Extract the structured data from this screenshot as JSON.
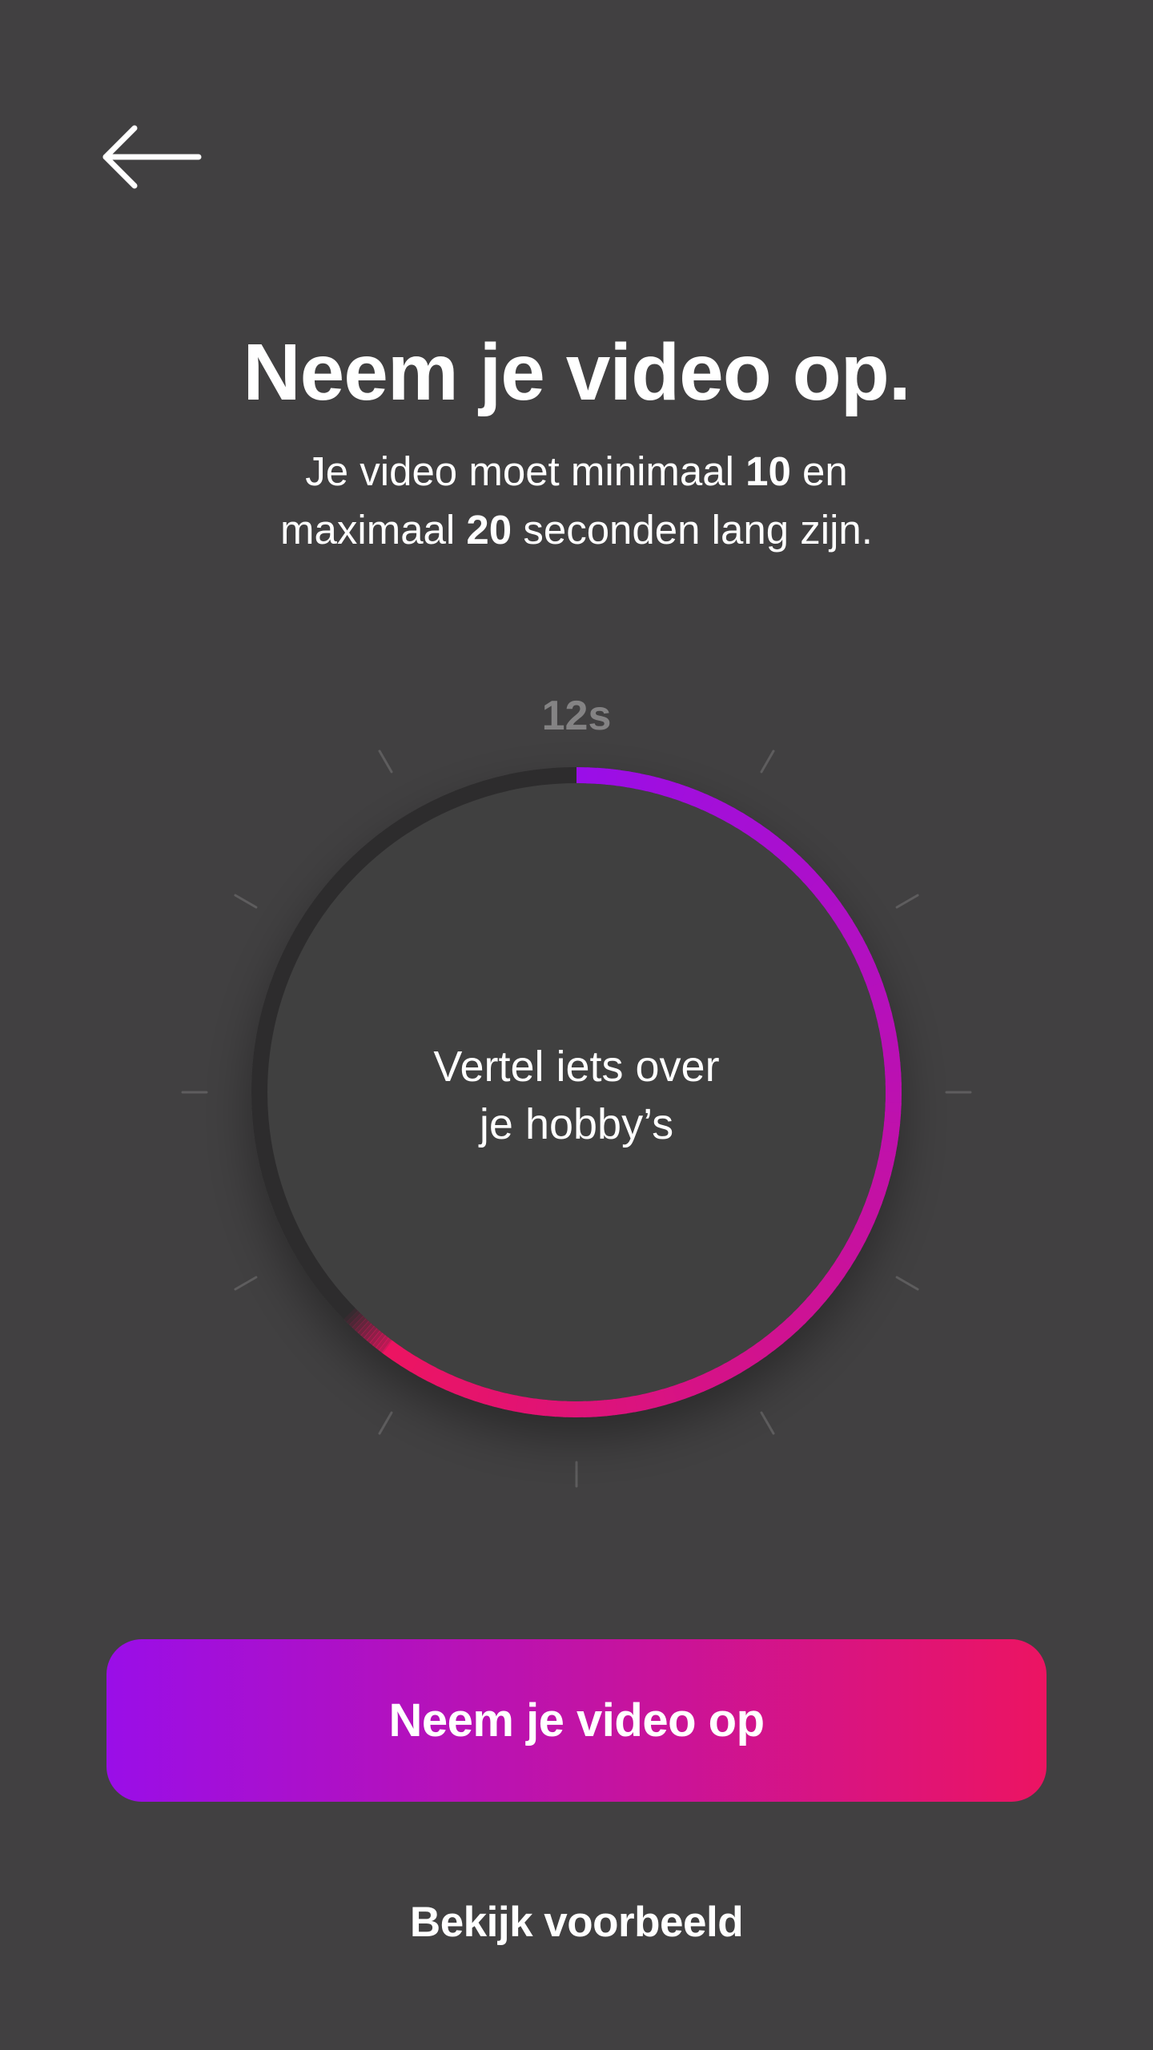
{
  "header": {
    "back_icon": "arrow-left-icon"
  },
  "intro": {
    "title": "Neem je video op.",
    "subtitle_part1": "Je video moet minimaal ",
    "subtitle_min": "10",
    "subtitle_part2": " en",
    "subtitle_part3": "maximaal ",
    "subtitle_max": "20",
    "subtitle_part4": " seconden lang zijn."
  },
  "timer": {
    "label": "12s",
    "progress_seconds": 12,
    "max_seconds": 20,
    "prompt_line1": "Vertel iets over",
    "prompt_line2": "je hobby’s",
    "track_color": "#2d2c2d",
    "gradient_start": "#9a0ee8",
    "gradient_end": "#ec1462"
  },
  "actions": {
    "record_label": "Neem je video op",
    "example_label": "Bekijk voorbeeld"
  },
  "colors": {
    "background": "#414041",
    "button_gradient": [
      "#9a0ee8",
      "#c113a6",
      "#ec1462"
    ]
  }
}
